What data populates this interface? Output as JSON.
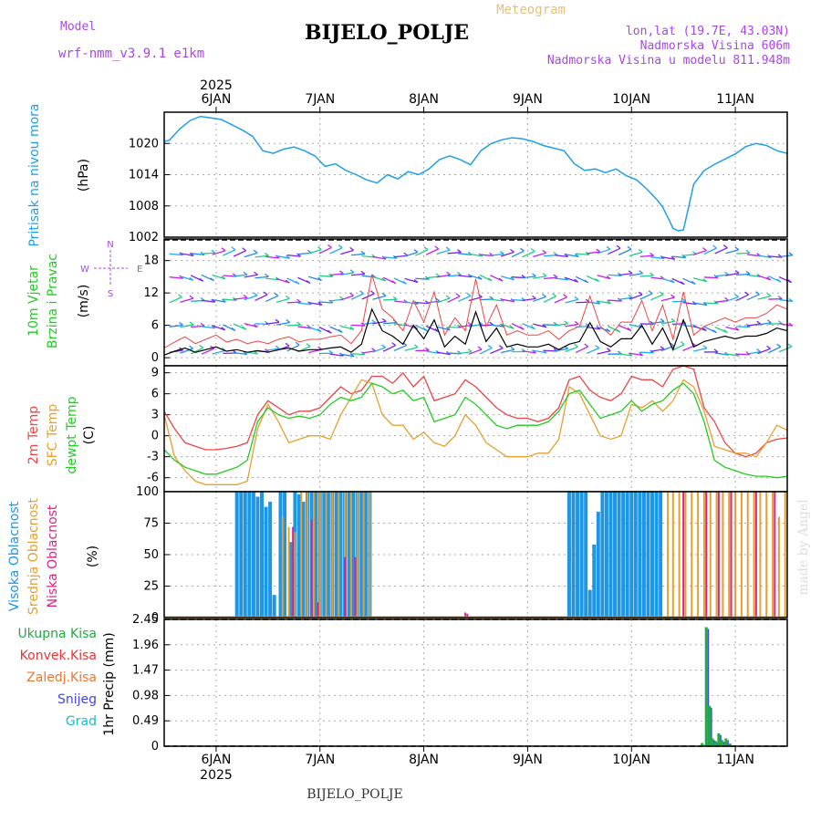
{
  "header": {
    "title": "BIJELO_POLJE",
    "meteogram": "Meteogram",
    "model_label": "Model",
    "model_name": "wrf-nmm_v3.9.1 e1km",
    "lonlat": "lon,lat (19.7E, 43.03N)",
    "altitude": "Nadmorska Visina 606m",
    "model_altitude": "Nadmorska Visina u modelu 811.948m"
  },
  "footer": {
    "location": "BIJELO_POLJE",
    "credit": "made by Angel"
  },
  "axis": {
    "year": "2025",
    "dates": [
      "6JAN",
      "7JAN",
      "8JAN",
      "9JAN",
      "10JAN",
      "11JAN"
    ]
  },
  "colors": {
    "pressure": "#1ea0e6",
    "temp2m": "#ee4444",
    "sfc": "#e6a030",
    "dewpt": "#22cc22",
    "high_cloud": "#1e96e6",
    "mid_cloud": "#e6a030",
    "low_cloud": "#dd2288",
    "precip_total": "#22aa44",
    "precip_conv": "#ee3333",
    "precip_frz": "#ee7733",
    "snow": "#4444ee",
    "hail": "#22bbbb",
    "wind_label": "#aa44ee"
  },
  "panels": {
    "pressure": {
      "label": "Pritisak na nivou mora",
      "unit": "(hPa)"
    },
    "wind": {
      "label1": "10m Vjetar",
      "label2": "Brzina i Pravac",
      "unit": "(m/s)",
      "compass": {
        "n": "N",
        "s": "S",
        "e": "E",
        "w": "W"
      }
    },
    "temp": {
      "label1": "2m Temp",
      "label2": "SFC Temp",
      "label3": "dewpt Temp",
      "unit": "(C)"
    },
    "cloud": {
      "label1": "Visoka Oblacnost",
      "label2": "Srednja Oblacnost",
      "label3": "Niska Oblacnost",
      "unit": "(%)"
    },
    "precip": {
      "unit": "1hr Precip (mm)",
      "legend": [
        "Ukupna Kisa",
        "Konvek.Kisa",
        "Zaledj.Kisa",
        "Snijeg",
        "Grad"
      ]
    }
  },
  "chart_data": [
    {
      "type": "line",
      "title": "Pritisak na nivou mora",
      "ylabel": "(hPa)",
      "x_unit": "days since 2025-01-06 00:00",
      "xlim": [
        -0.5,
        5.5
      ],
      "ylim": [
        1002,
        1026
      ],
      "yticks": [
        1002,
        1008,
        1014,
        1020
      ],
      "grid": true,
      "series": [
        {
          "name": "Pritisak na nivou mora",
          "x": [
            -0.5,
            -0.45,
            -0.35,
            -0.25,
            -0.15,
            -0.05,
            0.05,
            0.15,
            0.25,
            0.35,
            0.45,
            0.55,
            0.65,
            0.75,
            0.85,
            0.95,
            1.05,
            1.15,
            1.25,
            1.35,
            1.45,
            1.55,
            1.65,
            1.75,
            1.85,
            1.95,
            2.05,
            2.15,
            2.25,
            2.35,
            2.45,
            2.55,
            2.65,
            2.75,
            2.85,
            2.95,
            3.05,
            3.15,
            3.25,
            3.35,
            3.45,
            3.55,
            3.65,
            3.75,
            3.85,
            3.95,
            4.05,
            4.15,
            4.25,
            4.3,
            4.35,
            4.4,
            4.45,
            4.5,
            4.55,
            4.6,
            4.7,
            4.8,
            4.9,
            5.0,
            5.1,
            5.2,
            5.3,
            5.4,
            5.5
          ],
          "y": [
            1020.4,
            1020.6,
            1022.8,
            1024.4,
            1025.2,
            1024.9,
            1024.6,
            1023.6,
            1022.6,
            1021.4,
            1018.6,
            1018.1,
            1018.9,
            1019.3,
            1018.6,
            1017.6,
            1015.6,
            1016.1,
            1014.8,
            1014.0,
            1013.0,
            1012.4,
            1014.0,
            1013.2,
            1014.6,
            1014.0,
            1015.1,
            1016.9,
            1017.6,
            1016.9,
            1015.9,
            1018.6,
            1020.0,
            1020.7,
            1021.1,
            1020.9,
            1020.4,
            1019.6,
            1019.1,
            1018.6,
            1016.1,
            1014.8,
            1015.1,
            1014.4,
            1015.1,
            1013.8,
            1013.0,
            1011.2,
            1009.1,
            1007.8,
            1005.8,
            1003.7,
            1003.2,
            1003.4,
            1007.8,
            1012.2,
            1014.8,
            1016.0,
            1017.0,
            1018.0,
            1019.4,
            1020.0,
            1019.6,
            1018.6,
            1018.1
          ]
        }
      ]
    },
    {
      "type": "line",
      "title": "10m Vjetar Brzina i Pravac",
      "ylabel": "(m/s)",
      "x_unit": "days since 2025-01-06 00:00",
      "xlim": [
        -0.5,
        5.5
      ],
      "ylim": [
        -1.5,
        22
      ],
      "yticks": [
        0,
        6,
        12,
        18
      ],
      "grid": true,
      "series": [
        {
          "name": "10m Vjetar",
          "x": [
            -0.5,
            -0.4,
            -0.3,
            -0.2,
            -0.1,
            0.0,
            0.1,
            0.2,
            0.3,
            0.4,
            0.5,
            0.6,
            0.7,
            0.8,
            0.9,
            1.0,
            1.1,
            1.2,
            1.3,
            1.4,
            1.5,
            1.6,
            1.7,
            1.8,
            1.9,
            2.0,
            2.1,
            2.2,
            2.3,
            2.4,
            2.5,
            2.6,
            2.7,
            2.8,
            2.9,
            3.0,
            3.1,
            3.2,
            3.3,
            3.4,
            3.5,
            3.6,
            3.7,
            3.8,
            3.9,
            4.0,
            4.1,
            4.2,
            4.3,
            4.4,
            4.5,
            4.6,
            4.7,
            4.8,
            4.9,
            5.0,
            5.1,
            5.2,
            5.3,
            5.4,
            5.5
          ],
          "y": [
            0.5,
            1.2,
            1.8,
            1.0,
            1.5,
            2.0,
            1.2,
            1.5,
            1.0,
            1.3,
            1.0,
            1.5,
            1.8,
            1.2,
            1.5,
            1.5,
            1.8,
            2.0,
            1.0,
            2.5,
            9.0,
            5.0,
            4.0,
            2.5,
            6.0,
            3.5,
            7.0,
            2.0,
            4.0,
            2.5,
            8.5,
            3.0,
            5.5,
            2.0,
            2.5,
            2.0,
            2.0,
            2.5,
            1.5,
            2.5,
            3.0,
            6.5,
            3.0,
            2.0,
            3.5,
            3.5,
            6.0,
            2.5,
            5.5,
            1.5,
            7.0,
            2.0,
            3.0,
            3.5,
            4.0,
            3.5,
            4.0,
            4.0,
            4.5,
            5.5,
            5.0
          ]
        }
      ]
    },
    {
      "type": "line",
      "title": "2m Temp / SFC Temp / dewpt Temp",
      "ylabel": "(C)",
      "x_unit": "days since 2025-01-06 00:00",
      "xlim": [
        -0.5,
        5.5
      ],
      "ylim": [
        -8,
        10
      ],
      "yticks": [
        -6,
        -3,
        0,
        3,
        6,
        9
      ],
      "grid": true,
      "x": [
        -0.5,
        -0.4,
        -0.3,
        -0.2,
        -0.1,
        0.0,
        0.1,
        0.2,
        0.3,
        0.4,
        0.5,
        0.6,
        0.7,
        0.8,
        0.9,
        1.0,
        1.1,
        1.2,
        1.3,
        1.4,
        1.5,
        1.6,
        1.7,
        1.8,
        1.9,
        2.0,
        2.1,
        2.2,
        2.3,
        2.4,
        2.5,
        2.6,
        2.7,
        2.8,
        2.9,
        3.0,
        3.1,
        3.2,
        3.3,
        3.4,
        3.5,
        3.6,
        3.7,
        3.8,
        3.9,
        4.0,
        4.1,
        4.2,
        4.3,
        4.4,
        4.5,
        4.6,
        4.7,
        4.8,
        4.9,
        5.0,
        5.1,
        5.2,
        5.3,
        5.4,
        5.5
      ],
      "series": [
        {
          "name": "2m Temp",
          "y": [
            3.5,
            1.0,
            -1.0,
            -1.5,
            -2.0,
            -2.0,
            -1.8,
            -1.5,
            -1.0,
            3.0,
            5.0,
            4.0,
            3.0,
            3.5,
            3.5,
            4.0,
            5.5,
            7.0,
            6.0,
            6.5,
            8.5,
            8.5,
            7.5,
            9.0,
            7.0,
            8.5,
            5.0,
            5.5,
            6.0,
            8.0,
            7.0,
            5.5,
            4.0,
            3.0,
            2.5,
            2.5,
            2.0,
            2.5,
            4.0,
            8.0,
            8.5,
            6.5,
            5.5,
            5.0,
            6.0,
            8.5,
            8.0,
            8.0,
            7.0,
            9.5,
            10.0,
            9.5,
            4.0,
            2.0,
            -1.0,
            -2.5,
            -3.0,
            -2.5,
            -1.0,
            -0.5,
            -0.3
          ]
        },
        {
          "name": "SFC Temp",
          "y": [
            3.0,
            -3.0,
            -5.0,
            -6.5,
            -7.0,
            -7.0,
            -7.0,
            -7.0,
            -6.5,
            1.0,
            4.5,
            2.0,
            -1.0,
            -0.5,
            0.0,
            0.0,
            -0.5,
            3.0,
            5.5,
            8.0,
            7.5,
            3.0,
            1.5,
            1.5,
            -0.5,
            0.5,
            -1.0,
            -1.5,
            0.0,
            3.0,
            1.5,
            -1.0,
            -2.0,
            -3.0,
            -3.0,
            -3.0,
            -2.5,
            -2.5,
            -0.5,
            7.0,
            6.0,
            3.0,
            0.0,
            -0.5,
            0.0,
            4.5,
            4.0,
            5.0,
            3.5,
            5.0,
            8.0,
            7.0,
            3.5,
            -1.5,
            -2.0,
            -2.5,
            -2.5,
            -3.0,
            -1.0,
            1.5,
            0.8
          ]
        },
        {
          "name": "dewpt Temp",
          "y": [
            -2.0,
            -3.5,
            -4.5,
            -5.0,
            -5.5,
            -5.5,
            -5.0,
            -4.5,
            -3.5,
            2.0,
            4.0,
            3.0,
            2.5,
            2.8,
            2.5,
            3.0,
            4.5,
            5.5,
            5.0,
            5.5,
            7.5,
            7.0,
            6.0,
            6.5,
            5.0,
            5.5,
            2.0,
            2.5,
            3.0,
            5.5,
            4.5,
            3.0,
            1.5,
            1.0,
            1.5,
            1.5,
            1.5,
            2.0,
            3.5,
            6.0,
            6.5,
            4.5,
            2.5,
            3.0,
            3.5,
            5.0,
            3.5,
            4.5,
            5.0,
            6.5,
            7.5,
            6.0,
            2.0,
            -3.5,
            -4.5,
            -5.0,
            -5.5,
            -5.8,
            -5.8,
            -6.0,
            -5.8
          ]
        }
      ]
    },
    {
      "type": "bar",
      "title": "Visoka / Srednja / Niska Oblacnost",
      "ylabel": "(%)",
      "x_unit": "days since 2025-01-06 00:00",
      "xlim": [
        -0.5,
        5.5
      ],
      "ylim": [
        0,
        100
      ],
      "yticks": [
        0,
        25,
        50,
        75,
        100
      ],
      "grid": true,
      "series": [
        {
          "name": "Visoka Oblacnost",
          "x": [
            0.2,
            0.24,
            0.28,
            0.32,
            0.36,
            0.4,
            0.44,
            0.48,
            0.52,
            0.56,
            0.62,
            0.66,
            0.72,
            0.76,
            0.8,
            0.84,
            0.88,
            0.92,
            0.96,
            1.0,
            1.04,
            1.08,
            1.12,
            1.16,
            1.2,
            1.24,
            1.28,
            1.32,
            1.36,
            1.4,
            1.44,
            1.48,
            3.4,
            3.44,
            3.48,
            3.52,
            3.56,
            3.6,
            3.64,
            3.68,
            3.72,
            3.76,
            3.8,
            3.84,
            3.88,
            3.92,
            3.96,
            4.0,
            4.04,
            4.08,
            4.12,
            4.16,
            4.2,
            4.24,
            4.28
          ],
          "y": [
            100,
            100,
            100,
            100,
            100,
            96,
            100,
            88,
            92,
            18,
            100,
            100,
            60,
            100,
            98,
            92,
            100,
            100,
            100,
            100,
            100,
            100,
            100,
            100,
            100,
            100,
            100,
            100,
            100,
            100,
            100,
            100,
            100,
            100,
            100,
            100,
            100,
            22,
            58,
            84,
            100,
            100,
            100,
            100,
            100,
            100,
            100,
            100,
            100,
            100,
            100,
            100,
            100,
            100,
            100
          ]
        },
        {
          "name": "Srednja Oblacnost",
          "x": [
            0.64,
            0.7,
            0.76,
            0.82,
            0.88,
            0.94,
            1.0,
            1.06,
            1.12,
            1.18,
            1.24,
            1.3,
            1.36,
            1.42,
            1.48,
            4.35,
            4.4,
            4.46,
            4.52,
            4.58,
            4.64,
            4.7,
            4.76,
            4.82,
            4.88,
            4.94,
            5.0,
            5.06,
            5.12,
            5.18,
            5.24,
            5.3,
            5.36,
            5.42,
            5.48
          ],
          "y": [
            80,
            72,
            68,
            100,
            100,
            100,
            100,
            100,
            100,
            100,
            100,
            100,
            100,
            100,
            100,
            100,
            100,
            100,
            100,
            100,
            100,
            100,
            100,
            100,
            100,
            100,
            100,
            100,
            100,
            100,
            100,
            100,
            100,
            80,
            100
          ]
        },
        {
          "name": "Niska Oblacnost",
          "x": [
            0.74,
            0.92,
            0.98,
            1.24,
            1.34,
            2.4,
            2.42,
            4.5,
            4.72,
            4.84,
            4.96,
            5.2,
            5.38
          ],
          "y": [
            72,
            78,
            12,
            48,
            48,
            4,
            3,
            100,
            100,
            100,
            100,
            100,
            100
          ]
        }
      ]
    },
    {
      "type": "bar",
      "title": "1hr Precip",
      "ylabel": "1hr Precip (mm)",
      "x_unit": "days since 2025-01-06 00:00",
      "xlim": [
        -0.5,
        5.5
      ],
      "ylim": [
        0,
        2.45
      ],
      "yticks": [
        0,
        0.49,
        0.98,
        1.47,
        1.96,
        2.45
      ],
      "grid": true,
      "series": [
        {
          "name": "Ukupna Kisa",
          "x": [
            4.68,
            4.72,
            4.75,
            4.78,
            4.81,
            4.84,
            4.87,
            4.91,
            4.95
          ],
          "y": [
            0.06,
            2.3,
            0.78,
            0.15,
            0.1,
            0.25,
            0.12,
            0.15,
            0.05
          ]
        }
      ]
    }
  ]
}
